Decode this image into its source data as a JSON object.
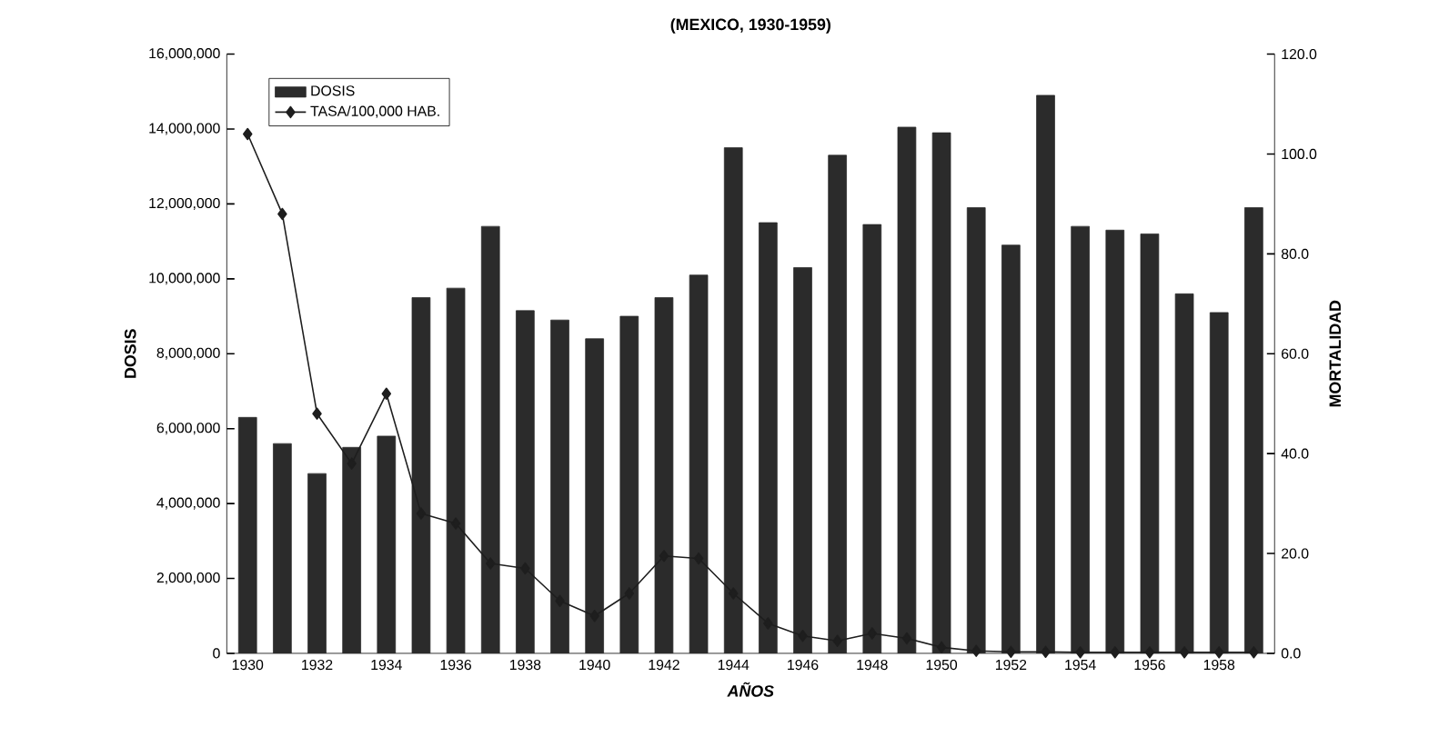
{
  "chart_data": {
    "type": "bar",
    "title": "(MEXICO, 1930-1959)",
    "xlabel": "AÑOS",
    "ylabel": "DOSIS",
    "y2label": "MORTALIDAD",
    "categories": [
      "1930",
      null,
      "1932",
      null,
      "1934",
      null,
      "1936",
      null,
      "1938",
      null,
      "1940",
      null,
      "1942",
      null,
      "1944",
      null,
      "1946",
      null,
      "1948",
      null,
      "1950",
      null,
      "1952",
      null,
      "1954",
      null,
      "1956",
      null,
      "1958",
      null
    ],
    "series": [
      {
        "name": "DOSIS",
        "color": "#2b2b2b",
        "values": [
          6300000,
          5600000,
          4800000,
          5500000,
          5800000,
          9500000,
          9750000,
          11400000,
          9150000,
          8900000,
          8400000,
          9000000,
          9500000,
          10100000,
          13500000,
          11500000,
          10300000,
          13300000,
          11450000,
          14050000,
          13900000,
          11900000,
          10900000,
          14900000,
          11400000,
          11300000,
          11200000,
          9600000,
          9100000,
          11900000
        ]
      },
      {
        "name": "TASA/100,000 HAB.",
        "type": "line",
        "axis": "y2",
        "color": "#1e1e1e",
        "values": [
          104,
          88,
          48,
          38,
          52,
          28,
          26,
          18,
          17,
          10.5,
          7.5,
          12,
          19.5,
          19,
          12,
          6,
          3.5,
          2.5,
          4,
          3,
          1.2,
          0.5,
          0.3,
          0.3,
          0.2,
          0.2,
          0.2,
          0.2,
          0.2,
          0.2
        ]
      }
    ],
    "ylim": [
      0,
      16000000
    ],
    "yticks": [
      {
        "value": 0,
        "label": "0"
      },
      {
        "value": 2000000,
        "label": "2,000,000"
      },
      {
        "value": 4000000,
        "label": "4,000,000"
      },
      {
        "value": 6000000,
        "label": "6,000,000"
      },
      {
        "value": 8000000,
        "label": "8,000,000"
      },
      {
        "value": 10000000,
        "label": "10,000,000"
      },
      {
        "value": 12000000,
        "label": "12,000,000"
      },
      {
        "value": 14000000,
        "label": "14,000,000"
      },
      {
        "value": 16000000,
        "label": "16,000,000"
      }
    ],
    "y2lim": [
      0,
      120
    ],
    "y2ticks": [
      {
        "value": 0,
        "label": "0.0"
      },
      {
        "value": 20,
        "label": "20.0"
      },
      {
        "value": 40,
        "label": "40.0"
      },
      {
        "value": 60,
        "label": "60.0"
      },
      {
        "value": 80,
        "label": "80.0"
      },
      {
        "value": 100,
        "label": "100.0"
      },
      {
        "value": 120,
        "label": "120.0"
      }
    ],
    "legend": "top left",
    "marker": "diamond"
  }
}
